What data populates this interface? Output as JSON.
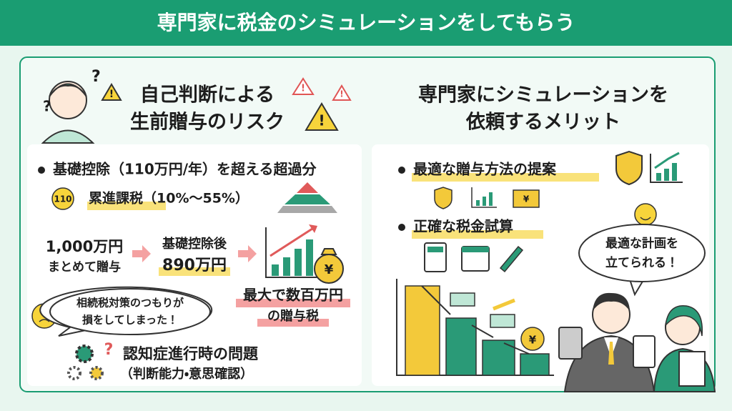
{
  "header": {
    "title": "専門家に税金のシミュレーションをしてもらう"
  },
  "left": {
    "heading": [
      "自己判断による",
      "生前贈与のリスク"
    ],
    "bullet": "基礎控除（110万円/年）を超える超過分",
    "badge": "110",
    "progressive": "累進課税（10%～55%）",
    "gift": [
      "1,000万円",
      "まとめて贈与"
    ],
    "after": [
      "基礎控除後",
      "890万円"
    ],
    "tax": [
      "最大で数百万円",
      "の贈与税"
    ],
    "speech": [
      "相続税対策のつもりが",
      "損をしてしまった！"
    ],
    "dementia": [
      "認知症進行時の問題",
      "（判断能力・意思確認）"
    ]
  },
  "right": {
    "heading": [
      "専門家にシミュレーションを",
      "依頼するメリット"
    ],
    "items": [
      "最適な贈与方法の提案",
      "正確な税金試算"
    ],
    "speech": [
      "最適な計画を",
      "立てられる！"
    ]
  },
  "icons": {
    "yen": "¥",
    "question": "?",
    "warning": "!"
  }
}
